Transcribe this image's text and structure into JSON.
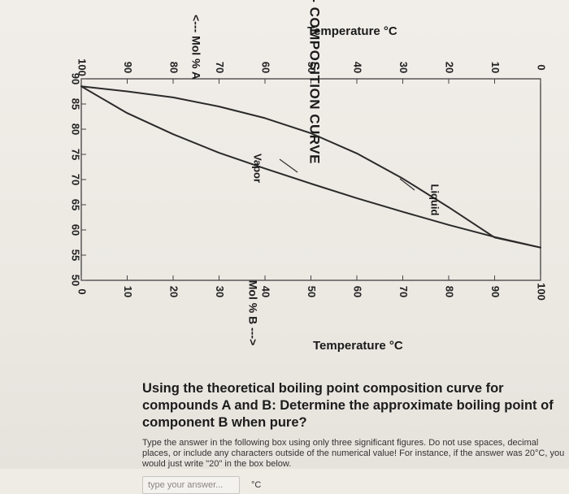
{
  "chart_data": {
    "type": "line",
    "title": "BOILING POINT - COMPOSITION CURVE",
    "x_top_label": "<--- Mol % A",
    "x_top_ticks": [
      "100",
      "90",
      "80",
      "70",
      "60",
      "50",
      "40",
      "30",
      "20",
      "10",
      "0"
    ],
    "xlabel": "Mol % B --->",
    "x_ticks": [
      "0",
      "10",
      "20",
      "30",
      "40",
      "50",
      "60",
      "70",
      "80",
      "90",
      "100"
    ],
    "ylabel": "Temperature °C",
    "ylabel_right": "Temperature °C",
    "y_ticks": [
      "90",
      "85",
      "80",
      "75",
      "70",
      "65",
      "60",
      "55",
      "50"
    ],
    "xlim": [
      0,
      100
    ],
    "ylim": [
      50,
      90
    ],
    "grid": false,
    "series": [
      {
        "name": "Vapor",
        "x": [
          0,
          10,
          20,
          30,
          40,
          50,
          60,
          70,
          80,
          90,
          100
        ],
        "y": [
          88.5,
          87.5,
          86.3,
          84.5,
          82.2,
          79.2,
          75.2,
          70.2,
          64.5,
          58.5,
          56.5
        ]
      },
      {
        "name": "Liquid",
        "x": [
          0,
          10,
          20,
          30,
          40,
          50,
          60,
          70,
          80,
          90,
          100
        ],
        "y": [
          88.5,
          83.2,
          79.0,
          75.3,
          72.2,
          69.2,
          66.3,
          63.6,
          61.0,
          58.6,
          56.5
        ]
      }
    ],
    "annotations": [
      {
        "text": "Vapor"
      },
      {
        "text": "Liquid"
      }
    ]
  },
  "question": {
    "title": "Using the theoretical boiling point composition curve for compounds A and B: Determine the approximate boiling point of component B when pure?",
    "instructions": "Type the answer in the following box using only three significant figures. Do not use spaces, decimal places, or include any characters outside of the numerical value! For instance, if the answer was 20°C, you would just write \"20\" in the box below.",
    "answer_placeholder": "type your answer...",
    "answer_value": "",
    "unit": "°C"
  }
}
